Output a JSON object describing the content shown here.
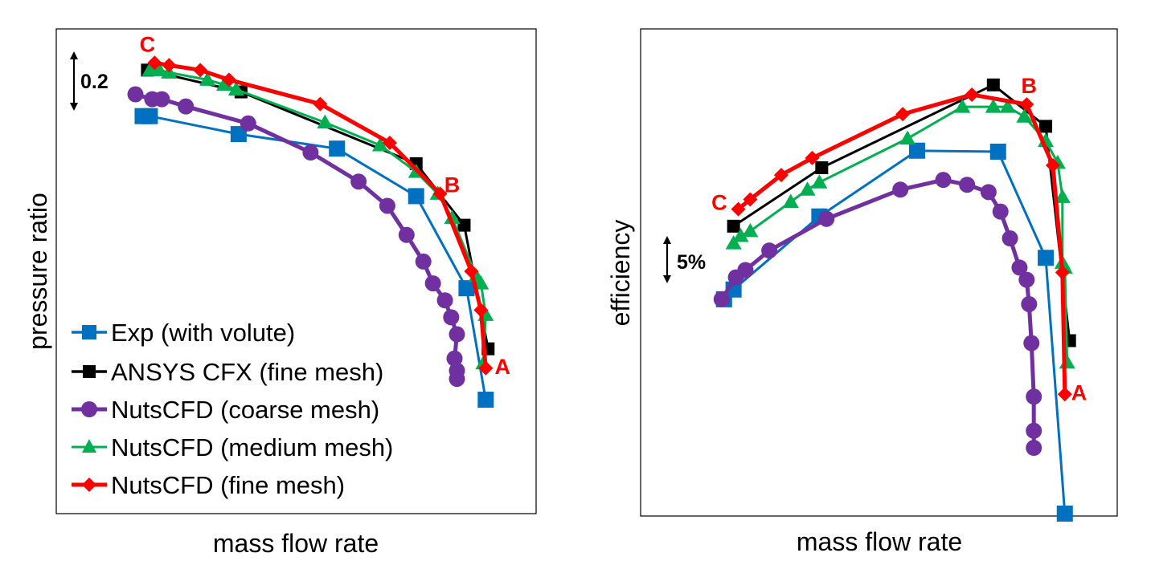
{
  "colors": {
    "exp": "#0070C0",
    "cfx": "#000000",
    "coarse": "#7030A0",
    "medium": "#00B050",
    "fine": "#FF0000"
  },
  "chart_data": [
    {
      "type": "line",
      "xlabel": "mass flow rate",
      "ylabel": "pressure ratio",
      "xlim": [
        0,
        100
      ],
      "ylim": [
        0,
        100
      ],
      "scale_bar": {
        "label": "0.2",
        "span": 8.4
      },
      "legend": {
        "placement": "bottom-left"
      },
      "series": [
        {
          "name": "Exp (with volute)",
          "key": "exp",
          "marker": "square",
          "x": [
            18,
            19.5,
            38,
            58.5,
            75,
            85.5,
            89.5
          ],
          "y": [
            82,
            82,
            78.3,
            75.3,
            65.5,
            46.5,
            23.5
          ]
        },
        {
          "name": "ANSYS CFX (fine mesh)",
          "key": "cfx",
          "marker": "square",
          "x": [
            19,
            38.5,
            75,
            85,
            90
          ],
          "y": [
            91.5,
            87,
            72.2,
            59.5,
            34
          ]
        },
        {
          "name": "NutsCFD (coarse mesh)",
          "key": "coarse",
          "marker": "circle",
          "x": [
            16.5,
            20,
            22,
            27,
            40,
            53,
            63,
            69,
            73,
            76.5,
            78.5,
            81,
            82.3,
            83.5,
            83,
            83.5,
            83.5
          ],
          "y": [
            86.5,
            85.5,
            85.5,
            84,
            80.5,
            74.5,
            68.5,
            63.5,
            57.5,
            52,
            47.5,
            44,
            40.5,
            37,
            32,
            29.5,
            27.8
          ]
        },
        {
          "name": "NutsCFD (medium mesh)",
          "key": "medium",
          "marker": "triangle",
          "x": [
            19.5,
            21.5,
            23.5,
            31.5,
            35,
            37.5,
            56,
            67.5,
            75,
            79.5,
            82.5,
            87.5,
            88.5,
            89.5,
            89
          ],
          "y": [
            91.5,
            91.5,
            91,
            89.5,
            88.5,
            87.5,
            80.7,
            76,
            70.5,
            66,
            61,
            49,
            47.5,
            41,
            31
          ]
        },
        {
          "name": "NutsCFD (fine mesh)",
          "key": "fine",
          "marker": "diamond",
          "x": [
            20.5,
            23.5,
            30,
            36,
            55,
            69.5,
            80,
            86.5,
            88.5,
            89.5
          ],
          "y": [
            93,
            92.5,
            91.5,
            89.5,
            84.5,
            76.5,
            66,
            50,
            42,
            30
          ]
        }
      ],
      "annotations": [
        {
          "text": "C",
          "x": 19,
          "y": 96.5
        },
        {
          "text": "B",
          "x": 82.5,
          "y": 67.5
        },
        {
          "text": "A",
          "x": 93,
          "y": 30
        }
      ]
    },
    {
      "type": "line",
      "xlabel": "mass flow rate",
      "ylabel": "efficiency",
      "xlim": [
        0,
        100
      ],
      "ylim": [
        0,
        100
      ],
      "scale_bar": {
        "label": "5%",
        "span": 9
      },
      "series": [
        {
          "name": "Exp (with volute)",
          "key": "exp",
          "marker": "square",
          "x": [
            17.5,
            19.5,
            37.5,
            58,
            75,
            85,
            89
          ],
          "y": [
            44.5,
            46.5,
            61.5,
            75,
            74.8,
            53,
            0.5
          ]
        },
        {
          "name": "ANSYS CFX (fine mesh)",
          "key": "cfx",
          "marker": "square",
          "x": [
            19.5,
            38,
            74,
            85,
            90
          ],
          "y": [
            59.5,
            71.5,
            88.5,
            80,
            36
          ]
        },
        {
          "name": "NutsCFD (coarse mesh)",
          "key": "coarse",
          "marker": "circle",
          "x": [
            17,
            20,
            22,
            27,
            39,
            54.5,
            63.5,
            68.5,
            73,
            75.5,
            77.5,
            79.5,
            81,
            81.5,
            82,
            82.5,
            82.5,
            82.5
          ],
          "y": [
            44.5,
            49,
            50.5,
            54.5,
            61,
            67,
            69,
            68,
            66.5,
            62.5,
            57,
            51,
            48.5,
            43.5,
            35.5,
            24.5,
            17.5,
            14
          ]
        },
        {
          "name": "NutsCFD (medium mesh)",
          "key": "medium",
          "marker": "triangle",
          "x": [
            19.5,
            21,
            23,
            31.5,
            35,
            37.5,
            56,
            67.5,
            74,
            77,
            80.5,
            85,
            87.5,
            88.5,
            88.5,
            89,
            89.5
          ],
          "y": [
            56,
            57.5,
            58.5,
            64.5,
            67,
            68.5,
            77.5,
            84,
            84,
            84,
            82,
            77,
            72.5,
            65.5,
            52,
            51,
            31.5
          ]
        },
        {
          "name": "NutsCFD (fine mesh)",
          "key": "fine",
          "marker": "diamond",
          "x": [
            20.5,
            23,
            29.5,
            36,
            55,
            69.5,
            81,
            86.5,
            88.5,
            89
          ],
          "y": [
            63,
            65,
            70,
            73.5,
            82.5,
            86.5,
            84.5,
            72,
            50,
            25
          ]
        }
      ],
      "annotations": [
        {
          "text": "C",
          "x": 16.5,
          "y": 64
        },
        {
          "text": "B",
          "x": 81.5,
          "y": 88
        },
        {
          "text": "A",
          "x": 92,
          "y": 25
        }
      ]
    }
  ]
}
